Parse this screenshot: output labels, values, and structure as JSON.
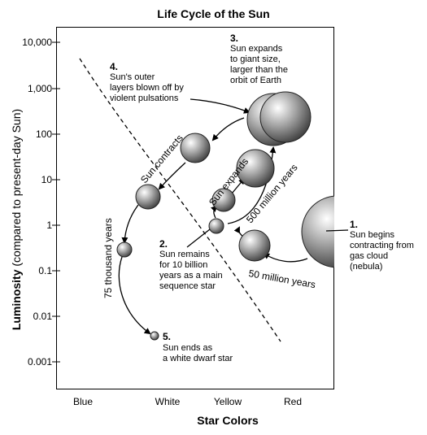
{
  "title": "Life Cycle of the Sun",
  "axes": {
    "x_title": "Star Colors",
    "y_title_bold": "Luminosity",
    "y_title_rest": " (compared to present-day Sun)",
    "y_ticks": [
      "10,000",
      "1,000",
      "100",
      "10",
      "1",
      "0.1",
      "0.01",
      "0.001"
    ],
    "x_ticks": [
      "Blue",
      "White",
      "Yellow",
      "Red"
    ]
  },
  "stages": {
    "s1": {
      "num": "1.",
      "lines": [
        "Sun begins",
        "contracting from",
        "gas cloud",
        "(nebula)"
      ]
    },
    "s2": {
      "num": "2.",
      "lines": [
        "Sun remains",
        "for 10 billion",
        "years as a main",
        "sequence star"
      ]
    },
    "s3": {
      "num": "3.",
      "lines": [
        "Sun expands",
        "to giant size,",
        "larger than the",
        "orbit of Earth"
      ]
    },
    "s4": {
      "num": "4.",
      "lines": [
        "Sun's outer",
        "layers blown off by",
        "violent pulsations"
      ]
    },
    "s5": {
      "num": "5.",
      "lines": [
        "Sun ends as",
        "a white dwarf star"
      ]
    }
  },
  "path_labels": {
    "fifty_million": "50 million years",
    "five_hundred_million": "500 million years",
    "sun_expands": "Sun expands",
    "sun_contracts": "Sun contracts",
    "seventy_five_thousand": "75 thousand years"
  }
}
